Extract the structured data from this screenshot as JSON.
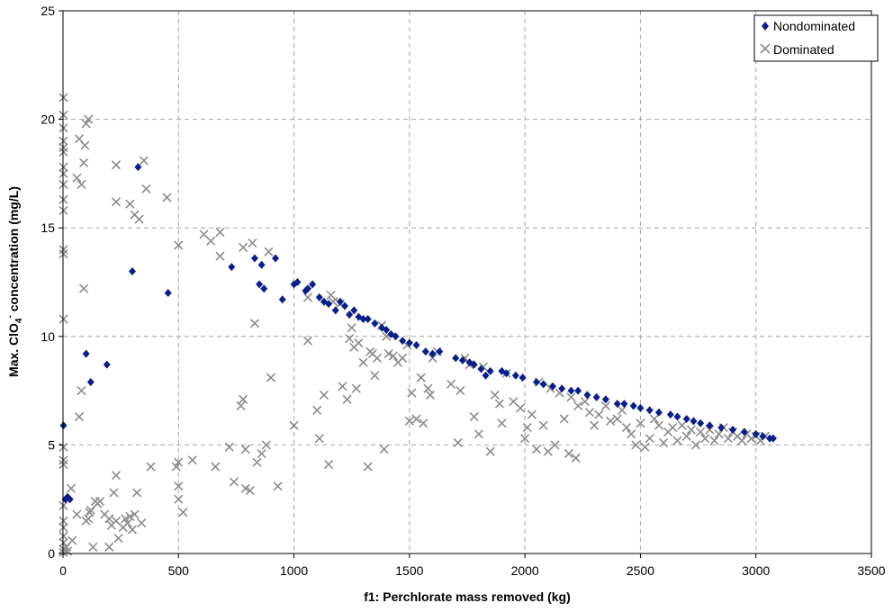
{
  "chart_data": {
    "type": "scatter",
    "title": "",
    "xlabel": "f1: Perchlorate mass removed (kg)",
    "ylabel": {
      "prefix": "Max. ClO",
      "sub": "4",
      "sup": "-",
      "suffix": " concentration (mg/L)"
    },
    "xlim": [
      0,
      3500
    ],
    "ylim": [
      0,
      25
    ],
    "x_ticks": [
      "0",
      "500",
      "1000",
      "1500",
      "2000",
      "2500",
      "3000",
      "3500"
    ],
    "y_ticks": [
      "0",
      "5",
      "10",
      "15",
      "20",
      "25"
    ],
    "grid": true,
    "legend_position": "top-right",
    "series": [
      {
        "name": "Nondominated",
        "marker": "diamond",
        "color": "#0a1f8a",
        "points": [
          [
            2,
            5.9
          ],
          [
            10,
            2.5
          ],
          [
            20,
            2.6
          ],
          [
            30,
            2.5
          ],
          [
            100,
            9.2
          ],
          [
            120,
            7.9
          ],
          [
            190,
            8.7
          ],
          [
            300,
            13.0
          ],
          [
            325,
            17.8
          ],
          [
            455,
            12.0
          ],
          [
            730,
            13.2
          ],
          [
            830,
            13.6
          ],
          [
            850,
            12.4
          ],
          [
            860,
            13.3
          ],
          [
            870,
            12.2
          ],
          [
            920,
            13.6
          ],
          [
            950,
            11.7
          ],
          [
            1000,
            12.4
          ],
          [
            1015,
            12.5
          ],
          [
            1050,
            12.1
          ],
          [
            1060,
            12.2
          ],
          [
            1080,
            12.4
          ],
          [
            1110,
            11.8
          ],
          [
            1130,
            11.6
          ],
          [
            1150,
            11.5
          ],
          [
            1180,
            11.2
          ],
          [
            1200,
            11.6
          ],
          [
            1220,
            11.4
          ],
          [
            1240,
            11.0
          ],
          [
            1260,
            11.2
          ],
          [
            1280,
            10.9
          ],
          [
            1300,
            10.8
          ],
          [
            1320,
            10.8
          ],
          [
            1350,
            10.6
          ],
          [
            1380,
            10.4
          ],
          [
            1400,
            10.3
          ],
          [
            1420,
            10.1
          ],
          [
            1440,
            10.0
          ],
          [
            1470,
            9.8
          ],
          [
            1500,
            9.7
          ],
          [
            1530,
            9.6
          ],
          [
            1570,
            9.3
          ],
          [
            1600,
            9.2
          ],
          [
            1630,
            9.3
          ],
          [
            1700,
            9.0
          ],
          [
            1730,
            8.9
          ],
          [
            1760,
            8.8
          ],
          [
            1780,
            8.7
          ],
          [
            1810,
            8.5
          ],
          [
            1830,
            8.2
          ],
          [
            1850,
            8.4
          ],
          [
            1900,
            8.4
          ],
          [
            1920,
            8.3
          ],
          [
            1960,
            8.2
          ],
          [
            1990,
            8.1
          ],
          [
            2050,
            7.9
          ],
          [
            2080,
            7.8
          ],
          [
            2120,
            7.7
          ],
          [
            2160,
            7.6
          ],
          [
            2200,
            7.5
          ],
          [
            2230,
            7.5
          ],
          [
            2270,
            7.3
          ],
          [
            2310,
            7.2
          ],
          [
            2350,
            7.1
          ],
          [
            2400,
            6.9
          ],
          [
            2430,
            6.9
          ],
          [
            2470,
            6.8
          ],
          [
            2500,
            6.7
          ],
          [
            2540,
            6.6
          ],
          [
            2580,
            6.5
          ],
          [
            2630,
            6.4
          ],
          [
            2660,
            6.3
          ],
          [
            2700,
            6.2
          ],
          [
            2730,
            6.1
          ],
          [
            2760,
            6.0
          ],
          [
            2800,
            5.9
          ],
          [
            2850,
            5.8
          ],
          [
            2900,
            5.7
          ],
          [
            2950,
            5.6
          ],
          [
            3000,
            5.5
          ],
          [
            3030,
            5.4
          ],
          [
            3060,
            5.3
          ],
          [
            3075,
            5.3
          ]
        ]
      },
      {
        "name": "Dominated",
        "marker": "x",
        "color": "#8c8c8c",
        "points": [
          [
            2,
            21.0
          ],
          [
            2,
            20.2
          ],
          [
            2,
            19.6
          ],
          [
            2,
            19.0
          ],
          [
            2,
            18.7
          ],
          [
            2,
            18.5
          ],
          [
            2,
            17.8
          ],
          [
            2,
            17.5
          ],
          [
            2,
            17.0
          ],
          [
            2,
            16.3
          ],
          [
            2,
            15.8
          ],
          [
            2,
            14.0
          ],
          [
            2,
            13.8
          ],
          [
            2,
            10.8
          ],
          [
            2,
            4.9
          ],
          [
            2,
            4.3
          ],
          [
            2,
            4.1
          ],
          [
            2,
            2.2
          ],
          [
            2,
            1.5
          ],
          [
            2,
            1.2
          ],
          [
            2,
            0.8
          ],
          [
            2,
            0.5
          ],
          [
            2,
            0.2
          ],
          [
            2,
            0.05
          ],
          [
            15,
            0.3
          ],
          [
            20,
            0.1
          ],
          [
            35,
            3.0
          ],
          [
            40,
            0.6
          ],
          [
            60,
            1.8
          ],
          [
            70,
            6.3
          ],
          [
            80,
            7.5
          ],
          [
            90,
            12.2
          ],
          [
            100,
            1.5
          ],
          [
            110,
            1.6
          ],
          [
            115,
            1.9
          ],
          [
            120,
            2.0
          ],
          [
            140,
            2.4
          ],
          [
            150,
            2.3
          ],
          [
            160,
            2.4
          ],
          [
            130,
            0.3
          ],
          [
            180,
            1.8
          ],
          [
            200,
            1.6
          ],
          [
            210,
            1.3
          ],
          [
            220,
            2.8
          ],
          [
            230,
            1.5
          ],
          [
            240,
            0.7
          ],
          [
            260,
            1.2
          ],
          [
            270,
            1.6
          ],
          [
            280,
            1.4
          ],
          [
            290,
            1.7
          ],
          [
            300,
            1.1
          ],
          [
            310,
            1.8
          ],
          [
            320,
            2.8
          ],
          [
            340,
            1.4
          ],
          [
            230,
            3.6
          ],
          [
            200,
            0.3
          ],
          [
            380,
            4.0
          ],
          [
            60,
            17.3
          ],
          [
            70,
            19.1
          ],
          [
            80,
            17.0
          ],
          [
            90,
            18.0
          ],
          [
            95,
            18.8
          ],
          [
            100,
            19.8
          ],
          [
            110,
            20.0
          ],
          [
            230,
            17.9
          ],
          [
            230,
            16.2
          ],
          [
            290,
            16.1
          ],
          [
            310,
            15.6
          ],
          [
            330,
            15.4
          ],
          [
            350,
            18.1
          ],
          [
            360,
            16.8
          ],
          [
            450,
            16.4
          ],
          [
            490,
            4.0
          ],
          [
            500,
            3.1
          ],
          [
            500,
            4.2
          ],
          [
            500,
            2.5
          ],
          [
            520,
            1.9
          ],
          [
            500,
            14.2
          ],
          [
            560,
            4.3
          ],
          [
            610,
            14.7
          ],
          [
            640,
            14.4
          ],
          [
            660,
            4.0
          ],
          [
            680,
            14.8
          ],
          [
            680,
            13.7
          ],
          [
            720,
            4.9
          ],
          [
            740,
            3.3
          ],
          [
            770,
            6.8
          ],
          [
            780,
            7.1
          ],
          [
            780,
            14.1
          ],
          [
            790,
            3.0
          ],
          [
            790,
            4.8
          ],
          [
            810,
            2.9
          ],
          [
            820,
            14.3
          ],
          [
            830,
            10.6
          ],
          [
            840,
            4.2
          ],
          [
            860,
            4.6
          ],
          [
            880,
            5.0
          ],
          [
            890,
            13.9
          ],
          [
            900,
            8.1
          ],
          [
            930,
            3.1
          ],
          [
            1000,
            5.9
          ],
          [
            1060,
            11.8
          ],
          [
            1060,
            9.8
          ],
          [
            1100,
            6.6
          ],
          [
            1110,
            5.3
          ],
          [
            1130,
            7.3
          ],
          [
            1150,
            4.1
          ],
          [
            1160,
            11.9
          ],
          [
            1170,
            11.6
          ],
          [
            1200,
            11.5
          ],
          [
            1210,
            7.7
          ],
          [
            1230,
            7.1
          ],
          [
            1240,
            9.9
          ],
          [
            1250,
            10.4
          ],
          [
            1260,
            9.5
          ],
          [
            1270,
            7.6
          ],
          [
            1280,
            9.7
          ],
          [
            1300,
            8.8
          ],
          [
            1320,
            4.0
          ],
          [
            1330,
            9.3
          ],
          [
            1340,
            9.2
          ],
          [
            1350,
            8.2
          ],
          [
            1360,
            9.0
          ],
          [
            1380,
            10.5
          ],
          [
            1390,
            4.8
          ],
          [
            1400,
            10.0
          ],
          [
            1410,
            9.2
          ],
          [
            1430,
            9.1
          ],
          [
            1450,
            8.8
          ],
          [
            1470,
            9.0
          ],
          [
            1490,
            9.6
          ],
          [
            1500,
            6.1
          ],
          [
            1510,
            7.4
          ],
          [
            1530,
            6.2
          ],
          [
            1550,
            8.1
          ],
          [
            1560,
            6.0
          ],
          [
            1580,
            7.6
          ],
          [
            1590,
            7.3
          ],
          [
            1600,
            9.0
          ],
          [
            1620,
            9.3
          ],
          [
            1680,
            7.8
          ],
          [
            1710,
            5.1
          ],
          [
            1720,
            7.5
          ],
          [
            1740,
            9.0
          ],
          [
            1760,
            8.7
          ],
          [
            1780,
            6.3
          ],
          [
            1800,
            5.5
          ],
          [
            1820,
            8.6
          ],
          [
            1850,
            4.7
          ],
          [
            1870,
            7.3
          ],
          [
            1890,
            6.9
          ],
          [
            1900,
            6.0
          ],
          [
            1920,
            8.3
          ],
          [
            1950,
            7.0
          ],
          [
            1980,
            6.7
          ],
          [
            2000,
            5.3
          ],
          [
            2010,
            5.8
          ],
          [
            2030,
            6.4
          ],
          [
            2050,
            4.8
          ],
          [
            2060,
            7.9
          ],
          [
            2080,
            5.9
          ],
          [
            2100,
            4.7
          ],
          [
            2110,
            7.6
          ],
          [
            2130,
            5.0
          ],
          [
            2150,
            7.4
          ],
          [
            2170,
            6.2
          ],
          [
            2190,
            4.6
          ],
          [
            2200,
            7.2
          ],
          [
            2220,
            4.4
          ],
          [
            2230,
            6.8
          ],
          [
            2260,
            7.0
          ],
          [
            2280,
            6.5
          ],
          [
            2300,
            5.9
          ],
          [
            2320,
            6.4
          ],
          [
            2350,
            6.8
          ],
          [
            2370,
            6.1
          ],
          [
            2400,
            6.2
          ],
          [
            2420,
            6.6
          ],
          [
            2440,
            5.8
          ],
          [
            2460,
            5.5
          ],
          [
            2480,
            5.0
          ],
          [
            2500,
            6.0
          ],
          [
            2520,
            4.9
          ],
          [
            2540,
            5.3
          ],
          [
            2560,
            6.2
          ],
          [
            2580,
            5.9
          ],
          [
            2600,
            5.1
          ],
          [
            2620,
            5.6
          ],
          [
            2640,
            5.8
          ],
          [
            2660,
            5.2
          ],
          [
            2680,
            5.9
          ],
          [
            2700,
            5.4
          ],
          [
            2720,
            5.7
          ],
          [
            2740,
            5.0
          ],
          [
            2760,
            5.6
          ],
          [
            2780,
            5.3
          ],
          [
            2800,
            5.7
          ],
          [
            2820,
            5.2
          ],
          [
            2840,
            5.5
          ],
          [
            2860,
            5.8
          ],
          [
            2880,
            5.3
          ],
          [
            2900,
            5.6
          ],
          [
            2920,
            5.4
          ],
          [
            2940,
            5.2
          ],
          [
            2960,
            5.5
          ],
          [
            2980,
            5.3
          ],
          [
            3000,
            5.4
          ],
          [
            3020,
            5.2
          ],
          [
            3040,
            5.4
          ]
        ]
      }
    ]
  }
}
